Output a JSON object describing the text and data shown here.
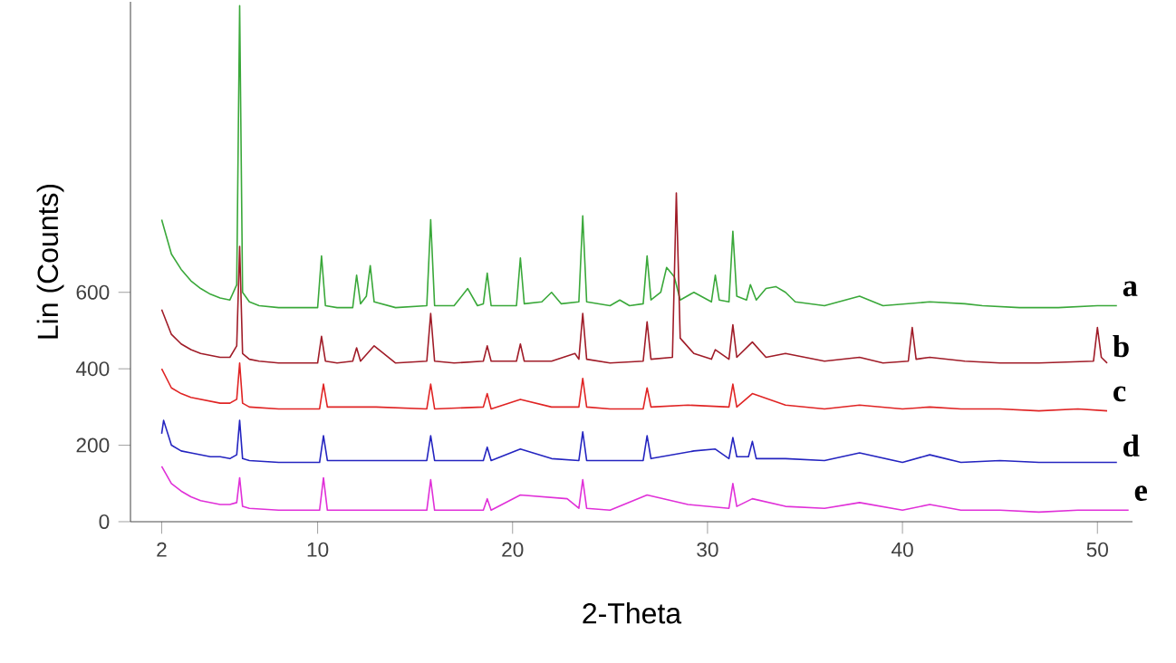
{
  "chart_data": {
    "type": "line",
    "xlabel": "2-Theta",
    "ylabel": "Lin (Counts)",
    "xlim": [
      0.4,
      51.8
    ],
    "ylim": [
      0,
      1360
    ],
    "xticks": [
      2,
      10,
      20,
      30,
      40,
      50
    ],
    "yticks": [
      0,
      200,
      400,
      600
    ],
    "series": [
      {
        "name": "a",
        "color": "#3aa83a",
        "x": [
          2,
          2.5,
          3,
          3.5,
          4,
          4.5,
          5,
          5.5,
          5.85,
          6.0,
          6.15,
          6.5,
          7,
          8,
          9,
          10.0,
          10.2,
          10.4,
          11,
          11.8,
          12.0,
          12.2,
          12.5,
          12.7,
          12.9,
          14,
          15.6,
          15.8,
          16.0,
          17,
          17.7,
          18.2,
          18.5,
          18.7,
          18.9,
          20.2,
          20.4,
          20.6,
          21.5,
          22.0,
          22.5,
          23.4,
          23.6,
          23.8,
          25,
          25.5,
          26,
          26.7,
          26.9,
          27.1,
          27.6,
          27.9,
          28.3,
          28.6,
          29.3,
          30.2,
          30.4,
          30.6,
          31.1,
          31.3,
          31.5,
          32.0,
          32.2,
          32.5,
          33.0,
          33.5,
          34.0,
          34.5,
          36,
          37.8,
          39,
          41.4,
          43.2,
          44.1,
          46,
          48,
          50,
          51
        ],
        "values": [
          790,
          700,
          660,
          630,
          610,
          595,
          585,
          580,
          620,
          1350,
          600,
          575,
          565,
          560,
          560,
          560,
          695,
          565,
          560,
          560,
          645,
          570,
          590,
          670,
          575,
          560,
          565,
          790,
          565,
          565,
          610,
          565,
          570,
          650,
          565,
          565,
          690,
          570,
          575,
          600,
          570,
          575,
          800,
          575,
          565,
          580,
          565,
          570,
          695,
          580,
          600,
          665,
          640,
          580,
          600,
          575,
          645,
          580,
          575,
          760,
          590,
          580,
          620,
          580,
          610,
          615,
          600,
          575,
          565,
          590,
          565,
          575,
          570,
          565,
          560,
          560,
          565,
          565
        ]
      },
      {
        "name": "b",
        "color": "#a01c28",
        "x": [
          2,
          2.5,
          3,
          3.5,
          4,
          4.5,
          5,
          5.5,
          5.85,
          6.0,
          6.15,
          6.5,
          7,
          8,
          9,
          10.0,
          10.2,
          10.4,
          11,
          11.8,
          12.0,
          12.2,
          12.9,
          14,
          15.6,
          15.8,
          16.0,
          17,
          18.5,
          18.7,
          18.9,
          20.2,
          20.4,
          20.6,
          22,
          23.2,
          23.4,
          23.6,
          23.8,
          25,
          26.7,
          26.9,
          27.1,
          28.2,
          28.4,
          28.6,
          29.3,
          30.2,
          30.4,
          31.1,
          31.3,
          31.5,
          32.3,
          33,
          34.0,
          35.0,
          36,
          37.8,
          39,
          40.3,
          40.5,
          40.7,
          41.4,
          43.2,
          45,
          47,
          49.8,
          50.0,
          50.2,
          50.5
        ],
        "values": [
          555,
          490,
          465,
          450,
          440,
          435,
          430,
          430,
          460,
          720,
          440,
          425,
          420,
          415,
          415,
          415,
          485,
          420,
          415,
          420,
          455,
          420,
          460,
          415,
          420,
          545,
          420,
          415,
          420,
          460,
          420,
          420,
          465,
          420,
          420,
          440,
          425,
          545,
          425,
          415,
          420,
          523,
          425,
          430,
          860,
          480,
          440,
          425,
          450,
          425,
          515,
          430,
          470,
          430,
          440,
          430,
          420,
          430,
          415,
          420,
          508,
          425,
          430,
          420,
          415,
          415,
          420,
          508,
          430,
          415
        ]
      },
      {
        "name": "c",
        "color": "#e02424",
        "x": [
          2,
          2.5,
          3,
          3.5,
          4,
          4.5,
          5,
          5.5,
          5.85,
          6.0,
          6.15,
          6.5,
          8,
          10.1,
          10.3,
          10.5,
          12,
          13,
          15.6,
          15.8,
          16.0,
          18.5,
          18.7,
          18.9,
          20.4,
          22,
          23.4,
          23.6,
          23.8,
          25,
          26.7,
          26.9,
          27.1,
          29,
          31.1,
          31.3,
          31.5,
          32.3,
          34,
          36,
          37.8,
          40,
          41.4,
          43,
          45,
          47,
          49,
          50.5
        ],
        "values": [
          400,
          350,
          335,
          325,
          320,
          315,
          310,
          310,
          320,
          415,
          310,
          300,
          295,
          295,
          360,
          300,
          300,
          300,
          295,
          360,
          295,
          300,
          335,
          295,
          320,
          300,
          300,
          375,
          300,
          295,
          295,
          350,
          300,
          305,
          300,
          360,
          300,
          335,
          305,
          295,
          305,
          295,
          300,
          295,
          295,
          290,
          295,
          290
        ]
      },
      {
        "name": "d",
        "color": "#2424c0",
        "x": [
          2,
          2.1,
          2.5,
          3,
          3.5,
          4,
          4.5,
          5,
          5.5,
          5.85,
          6.0,
          6.15,
          6.5,
          8,
          10.1,
          10.3,
          10.5,
          12,
          13,
          15.6,
          15.8,
          16.0,
          18.5,
          18.7,
          18.9,
          20.4,
          22,
          23.4,
          23.6,
          23.8,
          25,
          26.7,
          26.9,
          27.1,
          29.3,
          30.4,
          31.1,
          31.3,
          31.5,
          32.1,
          32.3,
          32.5,
          34,
          36,
          37.8,
          40,
          41.4,
          43,
          45,
          47,
          49,
          51
        ],
        "values": [
          230,
          265,
          200,
          185,
          180,
          175,
          170,
          170,
          165,
          175,
          265,
          165,
          160,
          155,
          155,
          225,
          160,
          160,
          160,
          160,
          225,
          160,
          160,
          195,
          160,
          190,
          165,
          160,
          235,
          160,
          160,
          160,
          225,
          165,
          185,
          190,
          165,
          220,
          170,
          170,
          210,
          165,
          165,
          160,
          180,
          155,
          175,
          155,
          160,
          155,
          155,
          155
        ]
      },
      {
        "name": "e",
        "color": "#e030d8",
        "x": [
          2,
          2.5,
          3,
          3.5,
          4,
          4.5,
          5,
          5.5,
          5.85,
          6.0,
          6.15,
          6.5,
          8,
          10.1,
          10.3,
          10.5,
          12,
          13,
          15.6,
          15.8,
          16.0,
          18.5,
          18.7,
          18.9,
          20.4,
          22.8,
          23.4,
          23.6,
          23.8,
          25,
          26.9,
          29,
          31.1,
          31.3,
          31.5,
          32.3,
          34,
          36,
          37.8,
          40,
          41.4,
          43,
          45,
          47,
          49,
          51.6
        ],
        "values": [
          145,
          100,
          80,
          65,
          55,
          50,
          45,
          45,
          50,
          115,
          40,
          35,
          30,
          30,
          115,
          30,
          30,
          30,
          30,
          110,
          30,
          30,
          60,
          30,
          70,
          60,
          35,
          110,
          35,
          30,
          70,
          45,
          35,
          100,
          40,
          60,
          40,
          35,
          50,
          30,
          45,
          30,
          30,
          25,
          30,
          30
        ]
      }
    ]
  }
}
